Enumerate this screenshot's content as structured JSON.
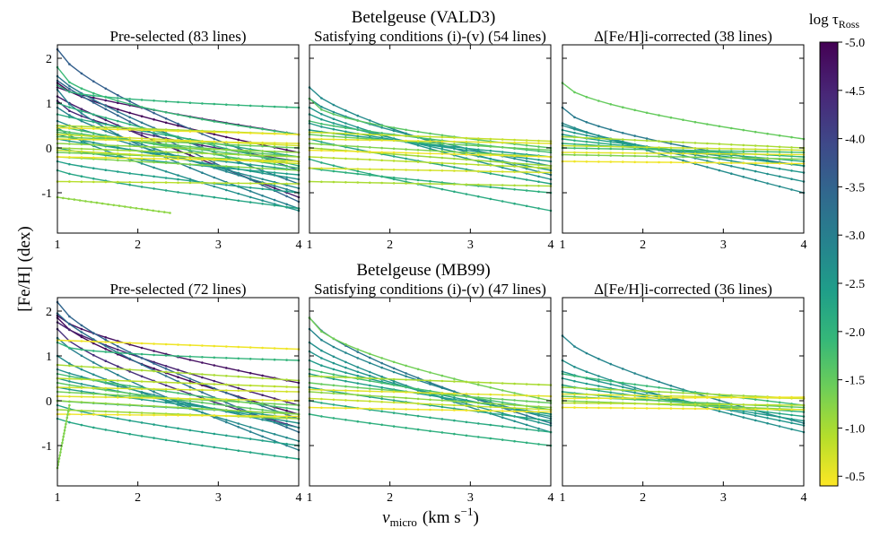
{
  "figure": {
    "ylabel": "[Fe/H]  (dex)",
    "xlabel_main": "v",
    "xlabel_sub": "micro",
    "xlabel_unit": "(km s",
    "xlabel_exp": "−1",
    "xlabel_close": ")"
  },
  "rows": [
    {
      "title": "Betelgeuse (VALD3)"
    },
    {
      "title": "Betelgeuse (MB99)"
    }
  ],
  "colorbar": {
    "label_main": "log τ",
    "label_sub": "Ross",
    "range": [
      -5.0,
      -0.4
    ],
    "ticks": [
      "-5.0",
      "-4.5",
      "-4.0",
      "-3.5",
      "-3.0",
      "-2.5",
      "-2.0",
      "-1.5",
      "-1.0",
      "-0.5"
    ],
    "tick_values": [
      -5.0,
      -4.5,
      -4.0,
      -3.5,
      -3.0,
      -2.5,
      -2.0,
      -1.5,
      -1.0,
      -0.5
    ],
    "colormap": "viridis_r",
    "stops": [
      "#fde725",
      "#b5de2b",
      "#6ece58",
      "#35b779",
      "#1f9e89",
      "#26828e",
      "#31688e",
      "#3e4989",
      "#482878",
      "#440154"
    ]
  },
  "chart_data": [
    {
      "type": "line",
      "row": 0,
      "col": 0,
      "title": "Pre-selected (83 lines)",
      "xlim": [
        1,
        4
      ],
      "ylim": [
        -1.9,
        2.3
      ],
      "xticks": [
        "1",
        "2",
        "3",
        "4"
      ],
      "yticks": [
        "-1",
        "0",
        "1",
        "2"
      ],
      "ytick_values": [
        -1,
        0,
        1,
        2
      ],
      "series": [
        {
          "tau": -4.8,
          "start": 1.35,
          "end": 0.3,
          "k": 0.8
        },
        {
          "tau": -4.9,
          "start": 1.45,
          "end": -0.1,
          "k": 0.7
        },
        {
          "tau": -4.7,
          "start": 1.15,
          "end": -1.1,
          "k": 0.9
        },
        {
          "tau": -4.5,
          "start": 1.05,
          "end": -0.3,
          "k": 0.6
        },
        {
          "tau": -3.6,
          "start": 2.2,
          "end": -0.5,
          "k": 0.7
        },
        {
          "tau": -3.5,
          "start": 1.5,
          "end": -1.2,
          "k": 0.9
        },
        {
          "tau": -3.2,
          "start": 1.6,
          "end": -0.8,
          "k": 0.8
        },
        {
          "tau": -3.0,
          "start": 1.3,
          "end": -1.35,
          "k": 0.7
        },
        {
          "tau": -2.9,
          "start": 0.9,
          "end": -1.0,
          "k": 0.8
        },
        {
          "tau": -2.8,
          "start": 0.6,
          "end": -0.9,
          "k": 0.9
        },
        {
          "tau": -2.7,
          "start": 0.45,
          "end": -1.4,
          "k": 0.8
        },
        {
          "tau": -2.6,
          "start": 0.3,
          "end": -0.7,
          "k": 0.9
        },
        {
          "tau": -2.5,
          "start": 0.2,
          "end": -0.5,
          "k": 0.9
        },
        {
          "tau": -2.4,
          "start": 0.0,
          "end": -0.6,
          "k": 0.8
        },
        {
          "tau": -2.4,
          "start": -0.3,
          "end": -1.0,
          "k": 0.8
        },
        {
          "tau": -2.3,
          "start": -0.5,
          "end": -1.35,
          "k": 0.8
        },
        {
          "tau": -2.2,
          "start": 0.75,
          "end": -0.2,
          "k": 0.9
        },
        {
          "tau": -2.1,
          "start": 1.0,
          "end": -0.4,
          "k": 0.9
        },
        {
          "tau": -2.0,
          "start": 1.4,
          "end": 0.9,
          "k": 0.4
        },
        {
          "tau": -1.9,
          "start": 1.8,
          "end": 0.3,
          "k": 0.5
        },
        {
          "tau": -1.8,
          "start": 0.5,
          "end": -0.45,
          "k": 0.9
        },
        {
          "tau": -1.7,
          "start": 0.4,
          "end": -0.3,
          "k": 0.9
        },
        {
          "tau": -1.6,
          "start": 0.35,
          "end": -0.2,
          "k": 0.9
        },
        {
          "tau": -1.5,
          "start": 0.25,
          "end": 0.0,
          "k": 1.0
        },
        {
          "tau": -1.4,
          "start": -0.1,
          "end": -0.3,
          "k": 1.0
        },
        {
          "tau": -1.3,
          "start": -0.2,
          "end": -0.5,
          "k": 1.0
        },
        {
          "tau": -1.2,
          "start": 0.1,
          "end": -0.1,
          "k": 1.0
        },
        {
          "tau": -1.1,
          "start": 0.0,
          "end": -0.2,
          "k": 1.0
        },
        {
          "tau": -1.0,
          "start": 0.5,
          "end": 0.3,
          "k": 1.0
        },
        {
          "tau": -0.9,
          "start": -0.75,
          "end": -0.8,
          "k": 1.0
        },
        {
          "tau": -0.8,
          "start": -0.05,
          "end": -0.35,
          "k": 1.0
        },
        {
          "tau": -0.7,
          "start": 0.3,
          "end": 0.05,
          "k": 1.0
        },
        {
          "tau": -0.6,
          "start": 0.2,
          "end": 0.1,
          "k": 1.0
        },
        {
          "tau": -0.5,
          "start": -0.2,
          "end": -0.3,
          "k": 1.0
        },
        {
          "tau": -0.5,
          "start": 0.45,
          "end": 0.3,
          "k": 1.0
        },
        {
          "tau": -1.2,
          "start": -1.1,
          "end": -1.45,
          "k": 1.0,
          "xend": 2.4
        }
      ]
    },
    {
      "type": "line",
      "row": 0,
      "col": 1,
      "title": "Satisfying conditions (i)-(v) (54 lines)",
      "xlim": [
        1,
        4
      ],
      "ylim": [
        -1.9,
        2.3
      ],
      "xticks": [
        "1",
        "2",
        "3",
        "4"
      ],
      "yticks": [],
      "ytick_values": [
        -1,
        0,
        1,
        2
      ],
      "series": [
        {
          "tau": -2.8,
          "start": 1.35,
          "end": -0.6,
          "k": 0.7
        },
        {
          "tau": -2.7,
          "start": 1.1,
          "end": -0.4,
          "k": 0.7
        },
        {
          "tau": -2.6,
          "start": 0.9,
          "end": -0.7,
          "k": 0.8
        },
        {
          "tau": -2.5,
          "start": 0.75,
          "end": -0.5,
          "k": 0.8
        },
        {
          "tau": -2.5,
          "start": 0.55,
          "end": -0.3,
          "k": 0.8
        },
        {
          "tau": -2.4,
          "start": 0.4,
          "end": -0.2,
          "k": 0.9
        },
        {
          "tau": -2.3,
          "start": 0.2,
          "end": -0.8,
          "k": 0.9
        },
        {
          "tau": -2.2,
          "start": -0.25,
          "end": -1.4,
          "k": 0.9
        },
        {
          "tau": -2.1,
          "start": -0.45,
          "end": -1.0,
          "k": 0.9
        },
        {
          "tau": -1.6,
          "start": 1.1,
          "end": 0.0,
          "k": 0.5
        },
        {
          "tau": -1.8,
          "start": 0.6,
          "end": -0.1,
          "k": 0.8
        },
        {
          "tau": -1.5,
          "start": 0.3,
          "end": -0.05,
          "k": 0.9
        },
        {
          "tau": -1.3,
          "start": 0.1,
          "end": -0.2,
          "k": 0.9
        },
        {
          "tau": -1.1,
          "start": 0.0,
          "end": -0.4,
          "k": 1.0
        },
        {
          "tau": -0.9,
          "start": -0.2,
          "end": -0.45,
          "k": 1.0
        },
        {
          "tau": -0.8,
          "start": 0.35,
          "end": 0.15,
          "k": 1.0
        },
        {
          "tau": -0.6,
          "start": 0.2,
          "end": 0.1,
          "k": 1.0
        },
        {
          "tau": -0.5,
          "start": -0.05,
          "end": -0.2,
          "k": 1.0
        },
        {
          "tau": -0.7,
          "start": -0.45,
          "end": -0.55,
          "k": 1.0
        },
        {
          "tau": -1.0,
          "start": -0.75,
          "end": -0.85,
          "k": 1.0
        }
      ]
    },
    {
      "type": "line",
      "row": 0,
      "col": 2,
      "title": "Δ[Fe/H]i-corrected (38 lines)",
      "xlim": [
        1,
        4
      ],
      "ylim": [
        -1.9,
        2.3
      ],
      "xticks": [
        "1",
        "2",
        "3",
        "4"
      ],
      "yticks": [],
      "ytick_values": [
        -1,
        0,
        1,
        2
      ],
      "series": [
        {
          "tau": -1.5,
          "start": 1.45,
          "end": 0.2,
          "k": 0.6
        },
        {
          "tau": -3.1,
          "start": 0.9,
          "end": -0.4,
          "k": 0.6
        },
        {
          "tau": -2.8,
          "start": 0.55,
          "end": -1.0,
          "k": 0.9
        },
        {
          "tau": -2.7,
          "start": 0.5,
          "end": -0.75,
          "k": 0.9
        },
        {
          "tau": -2.6,
          "start": 0.4,
          "end": -0.55,
          "k": 0.9
        },
        {
          "tau": -2.4,
          "start": 0.3,
          "end": -0.4,
          "k": 0.9
        },
        {
          "tau": -2.2,
          "start": 0.2,
          "end": -0.3,
          "k": 0.9
        },
        {
          "tau": -2.0,
          "start": 0.1,
          "end": -0.2,
          "k": 1.0
        },
        {
          "tau": -1.8,
          "start": 0.0,
          "end": -0.1,
          "k": 1.0
        },
        {
          "tau": -1.3,
          "start": -0.15,
          "end": -0.25,
          "k": 1.0
        },
        {
          "tau": -1.0,
          "start": 0.25,
          "end": 0.0,
          "k": 1.0
        },
        {
          "tau": -0.8,
          "start": 0.05,
          "end": -0.05,
          "k": 1.0
        },
        {
          "tau": -0.6,
          "start": -0.1,
          "end": -0.15,
          "k": 1.0
        },
        {
          "tau": -0.5,
          "start": -0.3,
          "end": -0.35,
          "k": 1.0
        }
      ]
    },
    {
      "type": "line",
      "row": 1,
      "col": 0,
      "title": "Pre-selected (72 lines)",
      "xlim": [
        1,
        4
      ],
      "ylim": [
        -1.9,
        2.3
      ],
      "xticks": [
        "1",
        "2",
        "3",
        "4"
      ],
      "yticks": [
        "-1",
        "0",
        "1",
        "2"
      ],
      "ytick_values": [
        -1,
        0,
        1,
        2
      ],
      "series": [
        {
          "tau": -4.8,
          "start": 1.9,
          "end": 0.4,
          "k": 0.7
        },
        {
          "tau": -4.9,
          "start": 1.85,
          "end": -0.3,
          "k": 0.7
        },
        {
          "tau": -4.6,
          "start": 1.75,
          "end": -0.1,
          "k": 0.8
        },
        {
          "tau": -4.4,
          "start": 1.6,
          "end": -0.6,
          "k": 0.7
        },
        {
          "tau": -3.5,
          "start": 2.2,
          "end": -0.4,
          "k": 0.7
        },
        {
          "tau": -3.3,
          "start": 1.95,
          "end": -0.7,
          "k": 0.8
        },
        {
          "tau": -3.0,
          "start": 1.4,
          "end": -1.1,
          "k": 0.8
        },
        {
          "tau": -2.8,
          "start": 1.0,
          "end": -0.9,
          "k": 0.8
        },
        {
          "tau": -2.7,
          "start": 0.7,
          "end": -0.6,
          "k": 0.9
        },
        {
          "tau": -2.6,
          "start": 0.5,
          "end": -0.5,
          "k": 0.9
        },
        {
          "tau": -2.5,
          "start": 0.3,
          "end": -0.4,
          "k": 0.9
        },
        {
          "tau": -2.4,
          "start": -0.1,
          "end": -1.0,
          "k": 0.8
        },
        {
          "tau": -2.3,
          "start": -0.4,
          "end": -1.3,
          "k": 0.8
        },
        {
          "tau": -2.2,
          "start": 0.0,
          "end": -0.3,
          "k": 0.9
        },
        {
          "tau": -2.0,
          "start": 1.3,
          "end": 0.9,
          "k": 0.4
        },
        {
          "tau": -1.8,
          "start": 0.6,
          "end": -0.2,
          "k": 0.9
        },
        {
          "tau": -1.6,
          "start": 0.4,
          "end": -0.3,
          "k": 0.9
        },
        {
          "tau": -1.4,
          "start": 0.2,
          "end": -0.1,
          "k": 1.0
        },
        {
          "tau": -1.2,
          "start": 0.0,
          "end": -0.3,
          "k": 1.0
        },
        {
          "tau": -1.1,
          "start": -0.2,
          "end": -0.4,
          "k": 1.0
        },
        {
          "tau": -1.0,
          "start": 0.8,
          "end": 0.45,
          "k": 1.0
        },
        {
          "tau": -0.9,
          "start": 0.5,
          "end": 0.3,
          "k": 1.0
        },
        {
          "tau": -0.7,
          "start": 0.3,
          "end": 0.2,
          "k": 1.0
        },
        {
          "tau": -0.6,
          "start": 0.1,
          "end": 0.0,
          "k": 1.0
        },
        {
          "tau": -0.5,
          "start": -0.3,
          "end": -0.35,
          "k": 1.0
        },
        {
          "tau": -0.5,
          "start": 1.35,
          "end": 1.15,
          "k": 1.0
        },
        {
          "tau": -1.3,
          "start": -1.5,
          "end": -0.1,
          "k": 1.0,
          "xend": 1.15
        }
      ]
    },
    {
      "type": "line",
      "row": 1,
      "col": 1,
      "title": "Satisfying conditions (i)-(v) (47 lines)",
      "xlim": [
        1,
        4
      ],
      "ylim": [
        -1.9,
        2.3
      ],
      "xticks": [
        "1",
        "2",
        "3",
        "4"
      ],
      "yticks": [],
      "ytick_values": [
        -1,
        0,
        1,
        2
      ],
      "series": [
        {
          "tau": -3.2,
          "start": 1.85,
          "end": -0.5,
          "k": 0.7
        },
        {
          "tau": -2.9,
          "start": 1.6,
          "end": -0.4,
          "k": 0.7
        },
        {
          "tau": -2.7,
          "start": 1.3,
          "end": -0.7,
          "k": 0.8
        },
        {
          "tau": -2.6,
          "start": 1.1,
          "end": -0.55,
          "k": 0.8
        },
        {
          "tau": -2.5,
          "start": 0.9,
          "end": -0.35,
          "k": 0.8
        },
        {
          "tau": -2.4,
          "start": 0.6,
          "end": -0.3,
          "k": 0.9
        },
        {
          "tau": -2.3,
          "start": 0.3,
          "end": -0.45,
          "k": 0.9
        },
        {
          "tau": -2.2,
          "start": 0.0,
          "end": -0.7,
          "k": 0.9
        },
        {
          "tau": -2.1,
          "start": -0.3,
          "end": -1.0,
          "k": 0.9
        },
        {
          "tau": -1.4,
          "start": 1.85,
          "end": 0.0,
          "k": 0.6
        },
        {
          "tau": -1.8,
          "start": 0.7,
          "end": -0.2,
          "k": 0.9
        },
        {
          "tau": -1.5,
          "start": 0.4,
          "end": -0.05,
          "k": 0.9
        },
        {
          "tau": -1.2,
          "start": 0.2,
          "end": -0.15,
          "k": 1.0
        },
        {
          "tau": -1.0,
          "start": 0.55,
          "end": 0.35,
          "k": 1.0
        },
        {
          "tau": -0.8,
          "start": 0.05,
          "end": -0.2,
          "k": 1.0
        },
        {
          "tau": -0.6,
          "start": 0.25,
          "end": 0.1,
          "k": 1.0
        },
        {
          "tau": -0.5,
          "start": -0.15,
          "end": -0.25,
          "k": 1.0
        }
      ]
    },
    {
      "type": "line",
      "row": 1,
      "col": 2,
      "title": "Δ[Fe/H]i-corrected (36 lines)",
      "xlim": [
        1,
        4
      ],
      "ylim": [
        -1.9,
        2.3
      ],
      "xticks": [
        "1",
        "2",
        "3",
        "4"
      ],
      "yticks": [],
      "ytick_values": [
        -1,
        0,
        1,
        2
      ],
      "series": [
        {
          "tau": -2.9,
          "start": 1.45,
          "end": -0.5,
          "k": 0.7
        },
        {
          "tau": -2.7,
          "start": 0.9,
          "end": -0.7,
          "k": 0.8
        },
        {
          "tau": -2.6,
          "start": 0.65,
          "end": -0.55,
          "k": 0.9
        },
        {
          "tau": -2.5,
          "start": 0.5,
          "end": -0.45,
          "k": 0.9
        },
        {
          "tau": -2.3,
          "start": 0.35,
          "end": -0.35,
          "k": 0.9
        },
        {
          "tau": -2.1,
          "start": 0.2,
          "end": -0.25,
          "k": 0.9
        },
        {
          "tau": -1.9,
          "start": 0.6,
          "end": -0.1,
          "k": 0.9
        },
        {
          "tau": -1.6,
          "start": 0.1,
          "end": -0.15,
          "k": 1.0
        },
        {
          "tau": -1.3,
          "start": 0.0,
          "end": -0.2,
          "k": 1.0
        },
        {
          "tau": -1.1,
          "start": 0.3,
          "end": 0.05,
          "k": 1.0
        },
        {
          "tau": -0.9,
          "start": -0.05,
          "end": -0.1,
          "k": 1.0
        },
        {
          "tau": -0.7,
          "start": 0.15,
          "end": 0.05,
          "k": 1.0
        },
        {
          "tau": -0.5,
          "start": -0.15,
          "end": -0.2,
          "k": 1.0
        },
        {
          "tau": -0.5,
          "start": 0.05,
          "end": 0.08,
          "k": 1.0
        }
      ]
    }
  ]
}
